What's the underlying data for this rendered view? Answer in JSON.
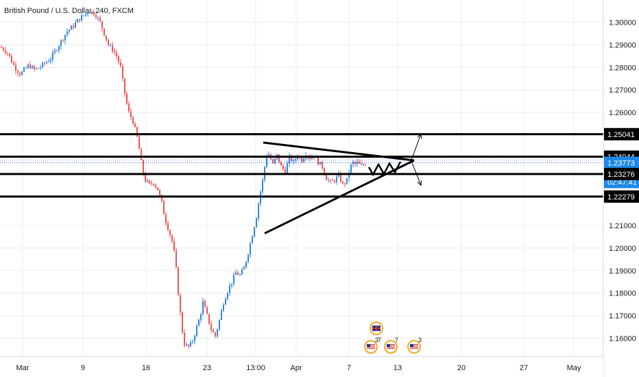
{
  "header": {
    "title": "British Pound / U.S. Dollar, 240, FXCM"
  },
  "colors": {
    "up": "#2e86de",
    "down": "#ef5350",
    "grid": "#e9ecf2",
    "level_line": "#000000",
    "price_label_bg": "#1e88e5",
    "price_dotted": "#2962ff"
  },
  "chart_data": {
    "type": "candlestick",
    "title": "British Pound / U.S. Dollar, 240, FXCM",
    "ylim": [
      1.152,
      1.308
    ],
    "y_ticks": [
      "1.30000",
      "1.29000",
      "1.28000",
      "1.27000",
      "1.26000",
      "1.25000",
      "1.21000",
      "1.20000",
      "1.19000",
      "1.18000",
      "1.17000",
      "1.16000"
    ],
    "y_tick_values": [
      1.3,
      1.29,
      1.28,
      1.27,
      1.26,
      1.25,
      1.21,
      1.2,
      1.19,
      1.18,
      1.17,
      1.16
    ],
    "x_ticks": [
      "Mar",
      "9",
      "16",
      "23",
      "13:00",
      "Apr",
      "7",
      "13",
      "20",
      "27",
      "May"
    ],
    "levels": [
      {
        "label": "1.25041",
        "value": 1.25041,
        "style": "black"
      },
      {
        "label": "1.24044",
        "value": 1.24044,
        "style": "black"
      },
      {
        "label": "1.23773",
        "value": 1.23773,
        "style": "current"
      },
      {
        "label": "1.23276",
        "value": 1.23276,
        "style": "black"
      },
      {
        "label": "1.22279",
        "value": 1.22279,
        "style": "black"
      }
    ],
    "countdown": "02:47:41",
    "last_price": 1.23773,
    "event_counts": [
      "3",
      "7",
      "7",
      "3"
    ],
    "price_path": [
      [
        0,
        1.289
      ],
      [
        6,
        1.288
      ],
      [
        12,
        1.286
      ],
      [
        18,
        1.282
      ],
      [
        24,
        1.279
      ],
      [
        30,
        1.277
      ],
      [
        36,
        1.279
      ],
      [
        42,
        1.281
      ],
      [
        50,
        1.279
      ],
      [
        58,
        1.28
      ],
      [
        66,
        1.282
      ],
      [
        74,
        1.284
      ],
      [
        82,
        1.288
      ],
      [
        90,
        1.292
      ],
      [
        98,
        1.296
      ],
      [
        106,
        1.298
      ],
      [
        114,
        1.301
      ],
      [
        122,
        1.303
      ],
      [
        130,
        1.305
      ],
      [
        138,
        1.304
      ],
      [
        146,
        1.3
      ],
      [
        152,
        1.295
      ],
      [
        158,
        1.29
      ],
      [
        164,
        1.288
      ],
      [
        170,
        1.285
      ],
      [
        176,
        1.28
      ],
      [
        180,
        1.272
      ],
      [
        184,
        1.265
      ],
      [
        188,
        1.26
      ],
      [
        194,
        1.256
      ],
      [
        200,
        1.249
      ],
      [
        204,
        1.242
      ],
      [
        208,
        1.234
      ],
      [
        212,
        1.23
      ],
      [
        218,
        1.228
      ],
      [
        224,
        1.229
      ],
      [
        230,
        1.226
      ],
      [
        236,
        1.22
      ],
      [
        240,
        1.214
      ],
      [
        246,
        1.208
      ],
      [
        252,
        1.202
      ],
      [
        256,
        1.194
      ],
      [
        260,
        1.18
      ],
      [
        264,
        1.168
      ],
      [
        268,
        1.158
      ],
      [
        274,
        1.156
      ],
      [
        280,
        1.158
      ],
      [
        286,
        1.164
      ],
      [
        292,
        1.17
      ],
      [
        296,
        1.176
      ],
      [
        302,
        1.17
      ],
      [
        308,
        1.164
      ],
      [
        314,
        1.161
      ],
      [
        320,
        1.168
      ],
      [
        326,
        1.176
      ],
      [
        332,
        1.181
      ],
      [
        338,
        1.185
      ],
      [
        344,
        1.189
      ],
      [
        350,
        1.188
      ],
      [
        356,
        1.191
      ],
      [
        362,
        1.198
      ],
      [
        368,
        1.206
      ],
      [
        374,
        1.214
      ],
      [
        378,
        1.222
      ],
      [
        382,
        1.228
      ],
      [
        386,
        1.236
      ],
      [
        390,
        1.243
      ],
      [
        394,
        1.24
      ],
      [
        398,
        1.237
      ],
      [
        404,
        1.241
      ],
      [
        410,
        1.236
      ],
      [
        416,
        1.234
      ],
      [
        422,
        1.24
      ],
      [
        428,
        1.238
      ],
      [
        434,
        1.241
      ],
      [
        440,
        1.239
      ],
      [
        446,
        1.242
      ],
      [
        452,
        1.24
      ],
      [
        458,
        1.241
      ],
      [
        464,
        1.238
      ],
      [
        470,
        1.236
      ],
      [
        476,
        1.231
      ],
      [
        482,
        1.229
      ],
      [
        488,
        1.23
      ],
      [
        494,
        1.232
      ],
      [
        500,
        1.228
      ],
      [
        506,
        1.23
      ],
      [
        510,
        1.235
      ],
      [
        514,
        1.238
      ],
      [
        518,
        1.237
      ],
      [
        522,
        1.238
      ],
      [
        526,
        1.236
      ],
      [
        530,
        1.237
      ],
      [
        534,
        1.2377
      ]
    ]
  },
  "drawings": {
    "upper_trendline": [
      [
        384,
        1.2467
      ],
      [
        604,
        1.2388
      ]
    ],
    "lower_trendline": [
      [
        386,
        1.2065
      ],
      [
        604,
        1.2388
      ]
    ],
    "zigzag": [
      [
        538,
        1.2358
      ],
      [
        544,
        1.2325
      ],
      [
        552,
        1.237
      ],
      [
        560,
        1.2328
      ],
      [
        568,
        1.2375
      ],
      [
        576,
        1.2335
      ],
      [
        584,
        1.2382
      ]
    ],
    "arrow_up": [
      [
        600,
        1.239
      ],
      [
        614,
        1.2505
      ]
    ],
    "arrow_down": [
      [
        600,
        1.2385
      ],
      [
        614,
        1.2278
      ]
    ]
  }
}
